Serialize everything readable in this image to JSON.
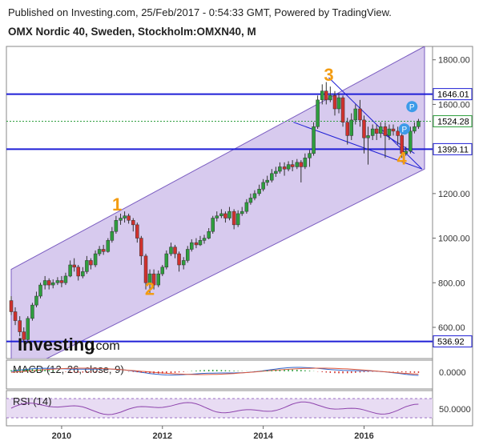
{
  "header": {
    "published": "Published on Investing.com, 25/Feb/2017 - 0:54:33 GMT, Powered by TradingView.",
    "title": "OMX Nordic 40, Sweden, Stockholm:OMXN40, M"
  },
  "logo": {
    "name": "Investing",
    "suffix": ".com"
  },
  "colors": {
    "up": "#2e9e3e",
    "down": "#d0312d",
    "hline": "#1f1fd6",
    "channel_fill": "#c9b8e8",
    "channel_line": "#7a5cc0",
    "wave_label": "#f39c12",
    "current": "#2e9e3e"
  },
  "price_axis_ticks": [
    "1800.00",
    "1600.00",
    "1400.00",
    "1200.00",
    "1000.00",
    "800.00",
    "600.00"
  ],
  "price_tags": [
    {
      "label": "1646.01",
      "kind": "resistance"
    },
    {
      "label": "1524.28",
      "kind": "current"
    },
    {
      "label": "1399.11",
      "kind": "support"
    },
    {
      "label": "536.92",
      "kind": "low"
    }
  ],
  "wave_labels": [
    "1",
    "2",
    "3",
    "4"
  ],
  "x_axis_ticks": [
    "2010",
    "2012",
    "2014",
    "2016"
  ],
  "macd": {
    "label": "MACD (12, 26, close, 9)",
    "value": "0.0000"
  },
  "rsi": {
    "label": "RSI (14)",
    "value": "50.0000"
  },
  "markers": [
    "P",
    "P"
  ],
  "chart_data": {
    "type": "candlestick",
    "title": "OMX Nordic 40, Sweden, Stockholm:OMXN40, M",
    "ylim": [
      460,
      1860
    ],
    "x_range": [
      2009.0,
      2017.2
    ],
    "horizontal_levels": [
      1646.01,
      1524.28,
      1399.11,
      536.92
    ],
    "channel": {
      "lower": [
        [
          2009.0,
          380
        ],
        [
          2017.2,
          1310
        ]
      ],
      "upper": [
        [
          2009.0,
          860
        ],
        [
          2017.2,
          1860
        ]
      ]
    },
    "wave_points": [
      {
        "label": "1",
        "x": 2011.1,
        "y": 1125
      },
      {
        "label": "2",
        "x": 2011.75,
        "y": 745
      },
      {
        "label": "3",
        "x": 2015.3,
        "y": 1705
      },
      {
        "label": "4",
        "x": 2016.75,
        "y": 1330
      }
    ],
    "candles": [
      [
        2009.0,
        720,
        670,
        740,
        655
      ],
      [
        2009.08,
        670,
        630,
        690,
        610
      ],
      [
        2009.17,
        630,
        580,
        650,
        560
      ],
      [
        2009.25,
        580,
        545,
        600,
        530
      ],
      [
        2009.33,
        545,
        640,
        650,
        540
      ],
      [
        2009.42,
        640,
        700,
        710,
        630
      ],
      [
        2009.5,
        700,
        740,
        760,
        690
      ],
      [
        2009.58,
        740,
        790,
        800,
        730
      ],
      [
        2009.67,
        790,
        810,
        830,
        770
      ],
      [
        2009.75,
        810,
        790,
        820,
        770
      ],
      [
        2009.83,
        790,
        800,
        815,
        775
      ],
      [
        2009.92,
        800,
        810,
        825,
        790
      ],
      [
        2010.0,
        810,
        800,
        830,
        780
      ],
      [
        2010.08,
        800,
        830,
        845,
        790
      ],
      [
        2010.17,
        830,
        880,
        900,
        825
      ],
      [
        2010.25,
        880,
        870,
        910,
        850
      ],
      [
        2010.33,
        870,
        830,
        880,
        810
      ],
      [
        2010.42,
        830,
        850,
        870,
        820
      ],
      [
        2010.5,
        850,
        900,
        920,
        840
      ],
      [
        2010.58,
        900,
        880,
        910,
        860
      ],
      [
        2010.67,
        880,
        930,
        945,
        870
      ],
      [
        2010.75,
        930,
        950,
        965,
        920
      ],
      [
        2010.83,
        950,
        940,
        970,
        925
      ],
      [
        2010.92,
        940,
        990,
        1000,
        935
      ],
      [
        2011.0,
        990,
        1030,
        1050,
        980
      ],
      [
        2011.08,
        1030,
        1080,
        1100,
        1020
      ],
      [
        2011.17,
        1080,
        1090,
        1110,
        1060
      ],
      [
        2011.25,
        1090,
        1100,
        1120,
        1070
      ],
      [
        2011.33,
        1100,
        1080,
        1110,
        1065
      ],
      [
        2011.42,
        1080,
        1060,
        1090,
        1030
      ],
      [
        2011.5,
        1060,
        1000,
        1070,
        980
      ],
      [
        2011.58,
        1000,
        920,
        1010,
        880
      ],
      [
        2011.67,
        920,
        800,
        930,
        770
      ],
      [
        2011.75,
        800,
        840,
        860,
        755
      ],
      [
        2011.83,
        840,
        790,
        860,
        770
      ],
      [
        2011.92,
        790,
        840,
        855,
        780
      ],
      [
        2012.0,
        840,
        870,
        880,
        830
      ],
      [
        2012.08,
        870,
        930,
        945,
        860
      ],
      [
        2012.17,
        930,
        960,
        980,
        920
      ],
      [
        2012.25,
        960,
        930,
        970,
        910
      ],
      [
        2012.33,
        930,
        880,
        940,
        850
      ],
      [
        2012.42,
        880,
        900,
        915,
        860
      ],
      [
        2012.5,
        900,
        950,
        965,
        890
      ],
      [
        2012.58,
        950,
        980,
        995,
        940
      ],
      [
        2012.67,
        980,
        970,
        1000,
        955
      ],
      [
        2012.75,
        970,
        990,
        1010,
        965
      ],
      [
        2012.83,
        990,
        1000,
        1015,
        975
      ],
      [
        2012.92,
        1000,
        1030,
        1045,
        995
      ],
      [
        2013.0,
        1030,
        1090,
        1100,
        1020
      ],
      [
        2013.08,
        1090,
        1100,
        1120,
        1075
      ],
      [
        2013.17,
        1100,
        1110,
        1130,
        1090
      ],
      [
        2013.25,
        1110,
        1090,
        1120,
        1070
      ],
      [
        2013.33,
        1090,
        1120,
        1140,
        1080
      ],
      [
        2013.42,
        1120,
        1060,
        1130,
        1040
      ],
      [
        2013.5,
        1060,
        1110,
        1125,
        1050
      ],
      [
        2013.58,
        1110,
        1120,
        1140,
        1100
      ],
      [
        2013.67,
        1120,
        1160,
        1175,
        1110
      ],
      [
        2013.75,
        1160,
        1180,
        1200,
        1150
      ],
      [
        2013.83,
        1180,
        1200,
        1215,
        1170
      ],
      [
        2013.92,
        1200,
        1220,
        1240,
        1190
      ],
      [
        2014.0,
        1220,
        1250,
        1265,
        1210
      ],
      [
        2014.08,
        1250,
        1260,
        1280,
        1235
      ],
      [
        2014.17,
        1260,
        1290,
        1310,
        1250
      ],
      [
        2014.25,
        1290,
        1300,
        1320,
        1275
      ],
      [
        2014.33,
        1300,
        1320,
        1340,
        1290
      ],
      [
        2014.42,
        1320,
        1310,
        1340,
        1280
      ],
      [
        2014.5,
        1310,
        1330,
        1345,
        1300
      ],
      [
        2014.58,
        1330,
        1320,
        1350,
        1300
      ],
      [
        2014.67,
        1320,
        1340,
        1355,
        1310
      ],
      [
        2014.75,
        1340,
        1320,
        1350,
        1250
      ],
      [
        2014.83,
        1320,
        1360,
        1380,
        1310
      ],
      [
        2014.92,
        1360,
        1380,
        1395,
        1320
      ],
      [
        2015.0,
        1380,
        1500,
        1520,
        1370
      ],
      [
        2015.08,
        1500,
        1620,
        1640,
        1490
      ],
      [
        2015.17,
        1620,
        1660,
        1690,
        1600
      ],
      [
        2015.25,
        1660,
        1620,
        1700,
        1600
      ],
      [
        2015.33,
        1620,
        1640,
        1680,
        1610
      ],
      [
        2015.42,
        1640,
        1580,
        1660,
        1550
      ],
      [
        2015.5,
        1580,
        1630,
        1650,
        1560
      ],
      [
        2015.58,
        1630,
        1520,
        1640,
        1500
      ],
      [
        2015.67,
        1520,
        1460,
        1540,
        1420
      ],
      [
        2015.75,
        1460,
        1530,
        1560,
        1440
      ],
      [
        2015.83,
        1530,
        1580,
        1600,
        1510
      ],
      [
        2015.92,
        1580,
        1530,
        1620,
        1500
      ],
      [
        2016.0,
        1530,
        1450,
        1550,
        1380
      ],
      [
        2016.08,
        1450,
        1460,
        1500,
        1330
      ],
      [
        2016.17,
        1460,
        1490,
        1510,
        1440
      ],
      [
        2016.25,
        1490,
        1470,
        1510,
        1440
      ],
      [
        2016.33,
        1470,
        1500,
        1520,
        1450
      ],
      [
        2016.42,
        1500,
        1460,
        1520,
        1360
      ],
      [
        2016.5,
        1460,
        1490,
        1510,
        1440
      ],
      [
        2016.58,
        1490,
        1480,
        1510,
        1460
      ],
      [
        2016.67,
        1480,
        1460,
        1500,
        1420
      ],
      [
        2016.75,
        1460,
        1380,
        1470,
        1360
      ],
      [
        2016.83,
        1380,
        1390,
        1410,
        1370
      ],
      [
        2016.92,
        1390,
        1480,
        1500,
        1380
      ],
      [
        2017.0,
        1480,
        1500,
        1520,
        1470
      ],
      [
        2017.08,
        1500,
        1524,
        1535,
        1490
      ]
    ]
  }
}
